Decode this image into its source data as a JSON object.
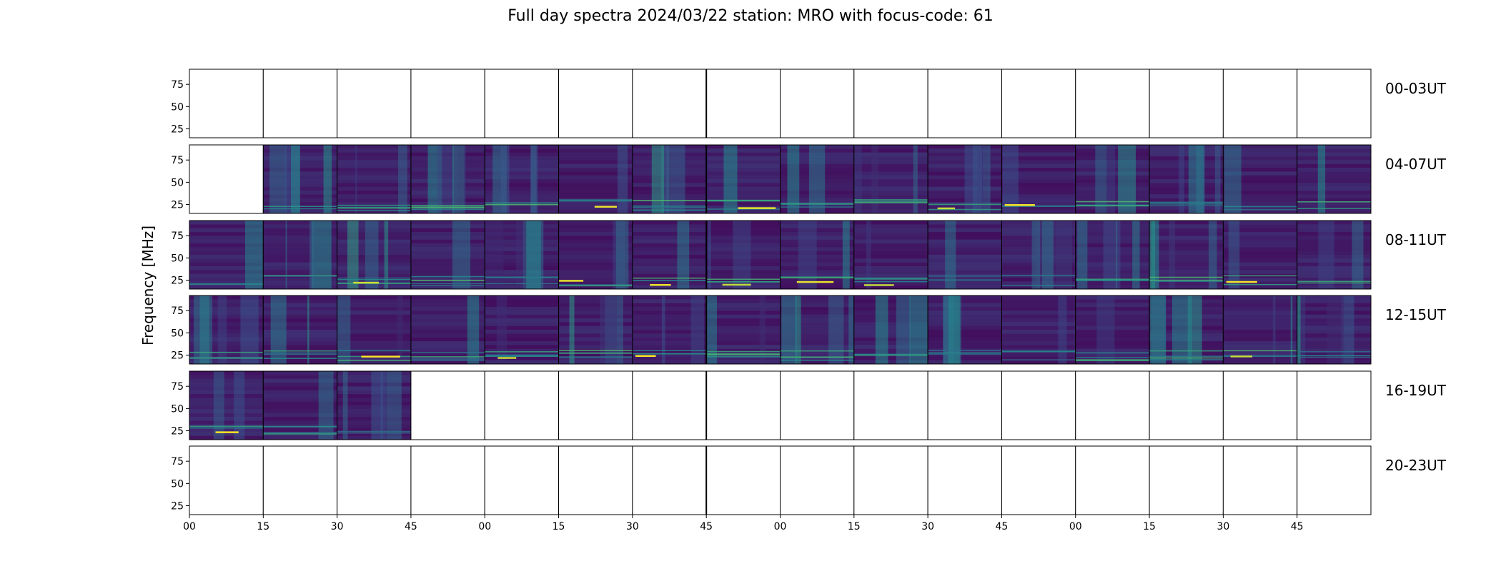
{
  "chart_data": {
    "type": "heatmap",
    "title": "Full day spectra 2024/03/22 station: MRO with focus-code: 61",
    "ylabel": "Frequency [MHz]",
    "xlabel": "",
    "ylim": [
      15,
      92
    ],
    "yticks": [
      25,
      50,
      75
    ],
    "xticks": [
      "00",
      "15",
      "30",
      "45",
      "00",
      "15",
      "30",
      "45",
      "00",
      "15",
      "30",
      "45",
      "00",
      "15",
      "30",
      "45"
    ],
    "colormap": "viridis",
    "colors": {
      "low": "#440154",
      "mid": "#21918c",
      "high": "#fde725",
      "empty": "#ffffff"
    },
    "panels_per_row": 16,
    "minutes_per_panel": 15,
    "rows": [
      {
        "label": "00-03UT",
        "has_data": [
          false,
          false,
          false,
          false,
          false,
          false,
          false,
          false,
          false,
          false,
          false,
          false,
          false,
          false,
          false,
          false
        ]
      },
      {
        "label": "04-07UT",
        "has_data": [
          false,
          true,
          true,
          true,
          true,
          true,
          true,
          true,
          true,
          true,
          true,
          true,
          true,
          true,
          true,
          true
        ]
      },
      {
        "label": "08-11UT",
        "has_data": [
          true,
          true,
          true,
          true,
          true,
          true,
          true,
          true,
          true,
          true,
          true,
          true,
          true,
          true,
          true,
          true
        ]
      },
      {
        "label": "12-15UT",
        "has_data": [
          true,
          true,
          true,
          true,
          true,
          true,
          true,
          true,
          true,
          true,
          true,
          true,
          true,
          true,
          true,
          true
        ]
      },
      {
        "label": "16-19UT",
        "has_data": [
          true,
          true,
          true,
          false,
          false,
          false,
          false,
          false,
          false,
          false,
          false,
          false,
          false,
          false,
          false,
          false
        ]
      },
      {
        "label": "20-23UT",
        "has_data": [
          false,
          false,
          false,
          false,
          false,
          false,
          false,
          false,
          false,
          false,
          false,
          false,
          false,
          false,
          false,
          false
        ]
      }
    ]
  }
}
